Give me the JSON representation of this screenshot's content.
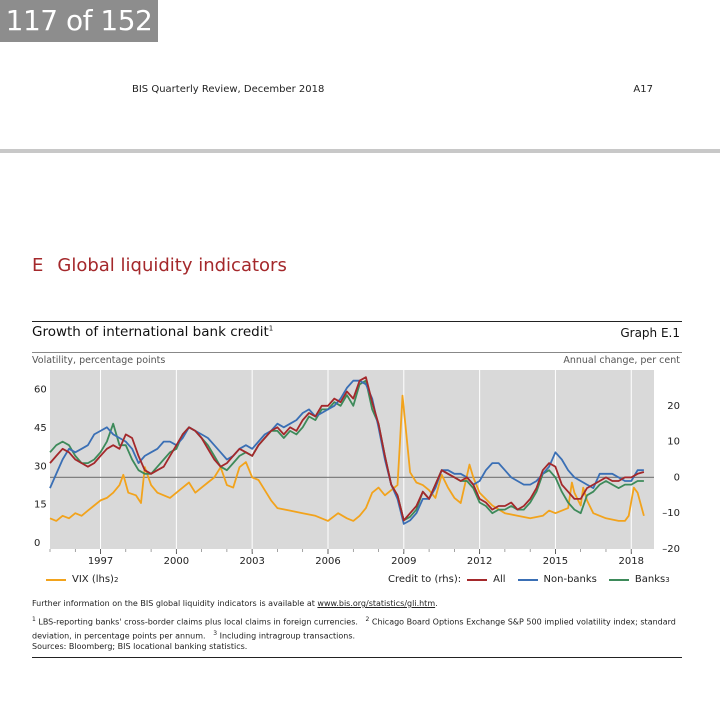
{
  "pager": "117 of 152",
  "header": {
    "publication": "BIS Quarterly Review, December 2018",
    "page": "A17"
  },
  "section": {
    "letter": "E",
    "title": "Global liquidity indicators"
  },
  "graph": {
    "title": "Growth of international bank credit",
    "title_note": "1",
    "id": "Graph E.1",
    "left_unit": "Volatility, percentage points",
    "right_unit": "Annual change, per cent"
  },
  "legend": {
    "vix_label": "VIX (lhs)",
    "vix_note": "2",
    "credit_label": "Credit to (rhs):",
    "all": "All",
    "nonbanks": "Non-banks",
    "banks": "Banks",
    "banks_note": "3"
  },
  "notes": {
    "further_prefix": "Further information on the BIS global liquidity indicators is available at ",
    "url": "www.bis.org/statistics/gli.htm",
    "further_suffix": ".",
    "n1_mark": "1",
    "n1": "LBS-reporting banks' cross-border claims plus local claims in foreign currencies.",
    "n2_mark": "2",
    "n2": "Chicago Board Options Exchange S&P 500 implied volatility index; standard deviation, in percentage points per annum.",
    "n3_mark": "3",
    "n3": "Including intragroup transactions.",
    "sources": "Sources: Bloomberg; BIS locational banking statistics."
  },
  "colors": {
    "vix": "#f2a31c",
    "all": "#a4282b",
    "nonbanks": "#3a6fb5",
    "banks": "#3d8a5a",
    "plot_bg": "#d9d9d9",
    "zero_line": "#808080"
  },
  "chart_data": {
    "type": "line",
    "x_range": [
      1995,
      2018.9
    ],
    "x_ticks": [
      "1997",
      "2000",
      "2003",
      "2006",
      "2009",
      "2012",
      "2015",
      "2018"
    ],
    "left_axis": {
      "ticks": [
        "0",
        "15",
        "30",
        "45",
        "60"
      ],
      "range": [
        0,
        70
      ]
    },
    "right_axis": {
      "ticks": [
        "–20",
        "–10",
        "0",
        "10",
        "20"
      ],
      "range": [
        -20,
        30
      ]
    },
    "series": [
      {
        "name": "VIX (lhs)",
        "axis": "left",
        "color": "#f2a31c",
        "x": [
          1995.0,
          1995.25,
          1995.5,
          1995.75,
          1996.0,
          1996.25,
          1996.5,
          1996.75,
          1997.0,
          1997.25,
          1997.5,
          1997.75,
          1997.9,
          1998.1,
          1998.4,
          1998.6,
          1998.75,
          1999.0,
          1999.25,
          1999.5,
          1999.75,
          2000.0,
          2000.25,
          2000.5,
          2000.75,
          2001.0,
          2001.25,
          2001.5,
          2001.75,
          2002.0,
          2002.25,
          2002.5,
          2002.75,
          2003.0,
          2003.25,
          2003.5,
          2003.75,
          2004.0,
          2004.5,
          2005.0,
          2005.5,
          2006.0,
          2006.4,
          2006.75,
          2007.0,
          2007.25,
          2007.5,
          2007.75,
          2008.0,
          2008.25,
          2008.5,
          2008.75,
          2008.85,
          2008.95,
          2009.1,
          2009.25,
          2009.5,
          2009.75,
          2010.0,
          2010.25,
          2010.5,
          2010.75,
          2011.0,
          2011.25,
          2011.6,
          2011.75,
          2012.0,
          2012.5,
          2013.0,
          2013.5,
          2014.0,
          2014.5,
          2014.75,
          2015.0,
          2015.5,
          2015.65,
          2015.75,
          2016.0,
          2016.1,
          2016.25,
          2016.5,
          2016.75,
          2017.0,
          2017.5,
          2017.75,
          2017.9,
          2018.1,
          2018.25,
          2018.5
        ],
        "y": [
          12,
          11,
          13,
          12,
          14,
          13,
          15,
          17,
          19,
          20,
          22,
          25,
          29,
          22,
          21,
          18,
          32,
          25,
          22,
          21,
          20,
          22,
          24,
          26,
          22,
          24,
          26,
          28,
          32,
          25,
          24,
          32,
          34,
          28,
          27,
          23,
          19,
          16,
          15,
          14,
          13,
          11,
          14,
          12,
          11,
          13,
          16,
          22,
          24,
          21,
          23,
          25,
          42,
          60,
          45,
          30,
          26,
          25,
          23,
          20,
          29,
          24,
          20,
          18,
          33,
          28,
          22,
          17,
          14,
          13,
          12,
          13,
          15,
          14,
          16,
          26,
          22,
          17,
          24,
          19,
          14,
          13,
          12,
          11,
          11,
          13,
          24,
          22,
          13
        ]
      },
      {
        "name": "All",
        "axis": "right",
        "color": "#a4282b",
        "x": [
          1995.0,
          1995.25,
          1995.5,
          1995.75,
          1996.0,
          1996.25,
          1996.5,
          1996.75,
          1997.0,
          1997.25,
          1997.5,
          1997.75,
          1998.0,
          1998.25,
          1998.5,
          1998.75,
          1999.0,
          1999.25,
          1999.5,
          1999.75,
          2000.0,
          2000.25,
          2000.5,
          2000.75,
          2001.0,
          2001.25,
          2001.5,
          2001.75,
          2002.0,
          2002.25,
          2002.5,
          2002.75,
          2003.0,
          2003.25,
          2003.5,
          2003.75,
          2004.0,
          2004.25,
          2004.5,
          2004.75,
          2005.0,
          2005.25,
          2005.5,
          2005.75,
          2006.0,
          2006.25,
          2006.5,
          2006.75,
          2007.0,
          2007.25,
          2007.5,
          2007.75,
          2008.0,
          2008.25,
          2008.5,
          2008.75,
          2009.0,
          2009.25,
          2009.5,
          2009.75,
          2010.0,
          2010.25,
          2010.5,
          2010.75,
          2011.0,
          2011.25,
          2011.5,
          2011.75,
          2012.0,
          2012.25,
          2012.5,
          2012.75,
          2013.0,
          2013.25,
          2013.5,
          2013.75,
          2014.0,
          2014.25,
          2014.5,
          2014.75,
          2015.0,
          2015.25,
          2015.5,
          2015.75,
          2016.0,
          2016.25,
          2016.5,
          2016.75,
          2017.0,
          2017.25,
          2017.5,
          2017.75,
          2018.0,
          2018.25,
          2018.5
        ],
        "y": [
          4,
          6,
          8,
          7,
          5,
          4,
          3,
          4,
          6,
          8,
          9,
          8,
          12,
          11,
          6,
          2,
          1,
          2,
          3,
          6,
          9,
          12,
          14,
          13,
          11,
          8,
          5,
          3,
          4,
          6,
          8,
          7,
          6,
          9,
          11,
          13,
          14,
          12,
          14,
          13,
          16,
          18,
          17,
          20,
          20,
          22,
          21,
          24,
          22,
          27,
          28,
          21,
          15,
          6,
          -2,
          -5,
          -12,
          -10,
          -8,
          -4,
          -6,
          -2,
          2,
          1,
          0,
          -1,
          0,
          -2,
          -6,
          -7,
          -9,
          -8,
          -8,
          -7,
          -9,
          -8,
          -6,
          -3,
          2,
          4,
          3,
          -2,
          -4,
          -6,
          -6,
          -3,
          -2,
          -1,
          0,
          -1,
          -1,
          0,
          0,
          1,
          1.5
        ]
      },
      {
        "name": "Non-banks",
        "axis": "right",
        "color": "#3a6fb5",
        "x": [
          1995.0,
          1995.25,
          1995.5,
          1995.75,
          1996.0,
          1996.25,
          1996.5,
          1996.75,
          1997.0,
          1997.25,
          1997.5,
          1997.75,
          1998.0,
          1998.25,
          1998.5,
          1998.75,
          1999.0,
          1999.25,
          1999.5,
          1999.75,
          2000.0,
          2000.25,
          2000.5,
          2000.75,
          2001.0,
          2001.25,
          2001.5,
          2001.75,
          2002.0,
          2002.25,
          2002.5,
          2002.75,
          2003.0,
          2003.25,
          2003.5,
          2003.75,
          2004.0,
          2004.25,
          2004.5,
          2004.75,
          2005.0,
          2005.25,
          2005.5,
          2005.75,
          2006.0,
          2006.25,
          2006.5,
          2006.75,
          2007.0,
          2007.25,
          2007.5,
          2007.75,
          2008.0,
          2008.25,
          2008.5,
          2008.75,
          2009.0,
          2009.25,
          2009.5,
          2009.75,
          2010.0,
          2010.25,
          2010.5,
          2010.75,
          2011.0,
          2011.25,
          2011.5,
          2011.75,
          2012.0,
          2012.25,
          2012.5,
          2012.75,
          2013.0,
          2013.25,
          2013.5,
          2013.75,
          2014.0,
          2014.25,
          2014.5,
          2014.75,
          2015.0,
          2015.25,
          2015.5,
          2015.75,
          2016.0,
          2016.25,
          2016.5,
          2016.75,
          2017.0,
          2017.25,
          2017.5,
          2017.75,
          2018.0,
          2018.25,
          2018.5
        ],
        "y": [
          -3,
          1,
          5,
          8,
          7,
          8,
          9,
          12,
          13,
          14,
          12,
          11,
          10,
          8,
          4,
          6,
          7,
          8,
          10,
          10,
          9,
          11,
          14,
          13,
          12,
          11,
          9,
          7,
          5,
          6,
          8,
          9,
          8,
          10,
          12,
          13,
          15,
          14,
          15,
          16,
          18,
          19,
          17,
          18,
          19,
          20,
          22,
          25,
          27,
          27,
          26,
          22,
          14,
          5,
          -2,
          -6,
          -13,
          -12,
          -10,
          -6,
          -6,
          -3,
          2,
          2,
          1,
          1,
          0,
          -2,
          -1,
          2,
          4,
          4,
          2,
          0,
          -1,
          -2,
          -2,
          -1,
          1,
          3,
          7,
          5,
          2,
          0,
          -1,
          -2,
          -3,
          1,
          1,
          1,
          0,
          -1,
          -1,
          2,
          2
        ]
      },
      {
        "name": "Banks",
        "axis": "right",
        "color": "#3d8a5a",
        "x": [
          1995.0,
          1995.25,
          1995.5,
          1995.75,
          1996.0,
          1996.25,
          1996.5,
          1996.75,
          1997.0,
          1997.25,
          1997.5,
          1997.75,
          1998.0,
          1998.25,
          1998.5,
          1998.75,
          1999.0,
          1999.25,
          1999.5,
          1999.75,
          2000.0,
          2000.25,
          2000.5,
          2000.75,
          2001.0,
          2001.25,
          2001.5,
          2001.75,
          2002.0,
          2002.25,
          2002.5,
          2002.75,
          2003.0,
          2003.25,
          2003.5,
          2003.75,
          2004.0,
          2004.25,
          2004.5,
          2004.75,
          2005.0,
          2005.25,
          2005.5,
          2005.75,
          2006.0,
          2006.25,
          2006.5,
          2006.75,
          2007.0,
          2007.25,
          2007.5,
          2007.75,
          2008.0,
          2008.25,
          2008.5,
          2008.75,
          2009.0,
          2009.25,
          2009.5,
          2009.75,
          2010.0,
          2010.25,
          2010.5,
          2010.75,
          2011.0,
          2011.25,
          2011.5,
          2011.75,
          2012.0,
          2012.25,
          2012.5,
          2012.75,
          2013.0,
          2013.25,
          2013.5,
          2013.75,
          2014.0,
          2014.25,
          2014.5,
          2014.75,
          2015.0,
          2015.25,
          2015.5,
          2015.75,
          2016.0,
          2016.25,
          2016.5,
          2016.75,
          2017.0,
          2017.25,
          2017.5,
          2017.75,
          2018.0,
          2018.25,
          2018.5
        ],
        "y": [
          7,
          9,
          10,
          9,
          6,
          4,
          4,
          5,
          7,
          10,
          15,
          9,
          9,
          5,
          2,
          1,
          1,
          3,
          5,
          7,
          8,
          12,
          14,
          13,
          11,
          9,
          6,
          3,
          2,
          4,
          6,
          7,
          6,
          9,
          11,
          13,
          13,
          11,
          13,
          12,
          14,
          17,
          16,
          19,
          19,
          21,
          20,
          23,
          20,
          26,
          27,
          19,
          15,
          6,
          -2,
          -5,
          -12,
          -11,
          -9,
          -4,
          -6,
          -2,
          2,
          1,
          0,
          -1,
          -1,
          -3,
          -7,
          -8,
          -10,
          -9,
          -9,
          -8,
          -9,
          -9,
          -7,
          -4,
          1,
          2,
          0,
          -4,
          -7,
          -9,
          -10,
          -5,
          -4,
          -2,
          -1,
          -2,
          -3,
          -2,
          -2,
          -1,
          -1
        ]
      }
    ]
  }
}
